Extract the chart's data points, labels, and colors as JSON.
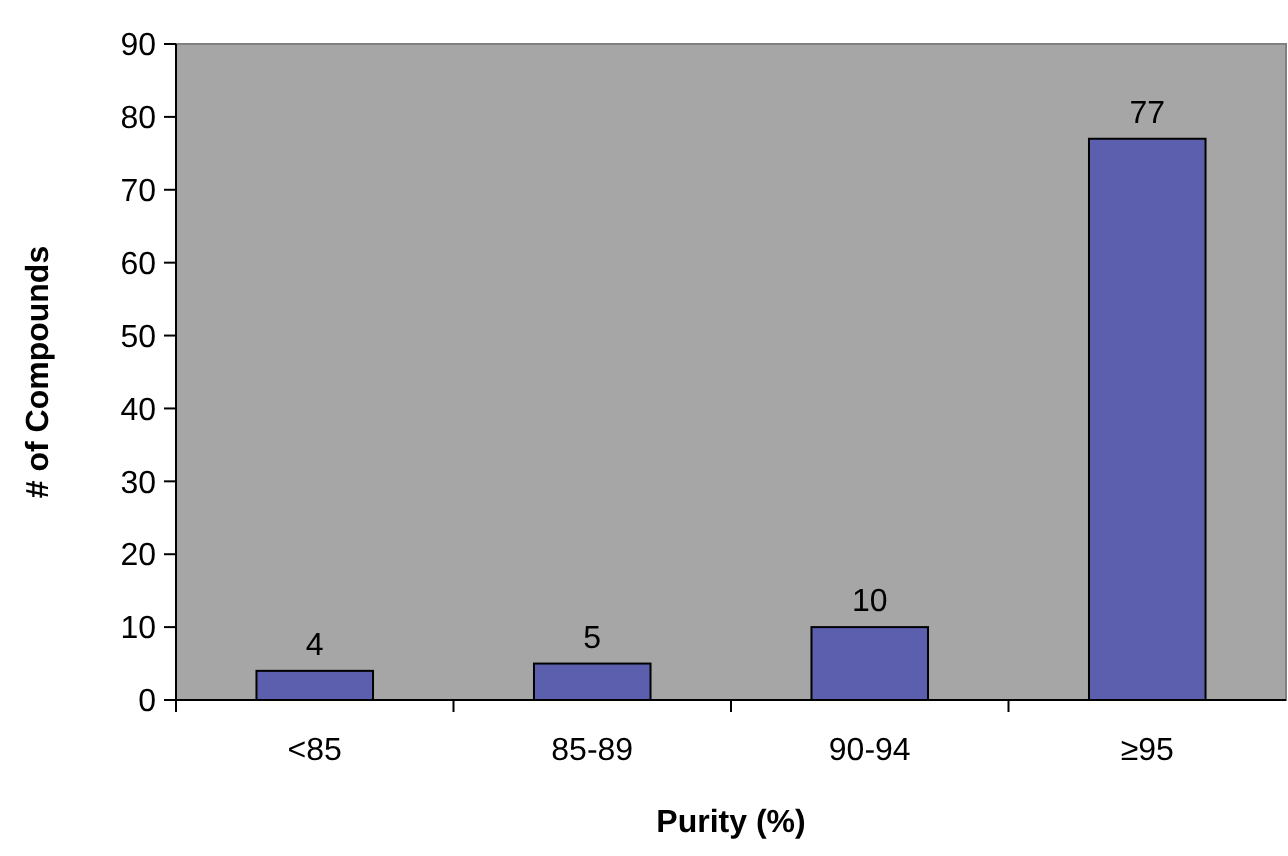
{
  "chart_data": {
    "type": "bar",
    "xlabel": "Purity (%)",
    "ylabel": "# of Compounds",
    "categories": [
      "<85",
      "85-89",
      "90-94",
      "≥95"
    ],
    "values": [
      4,
      5,
      10,
      77
    ],
    "color": "#5b5fae",
    "ylim": [
      0,
      90
    ],
    "yticks": [
      0,
      10,
      20,
      30,
      40,
      50,
      60,
      70,
      80,
      90
    ],
    "grid": false,
    "data_labels": true
  }
}
